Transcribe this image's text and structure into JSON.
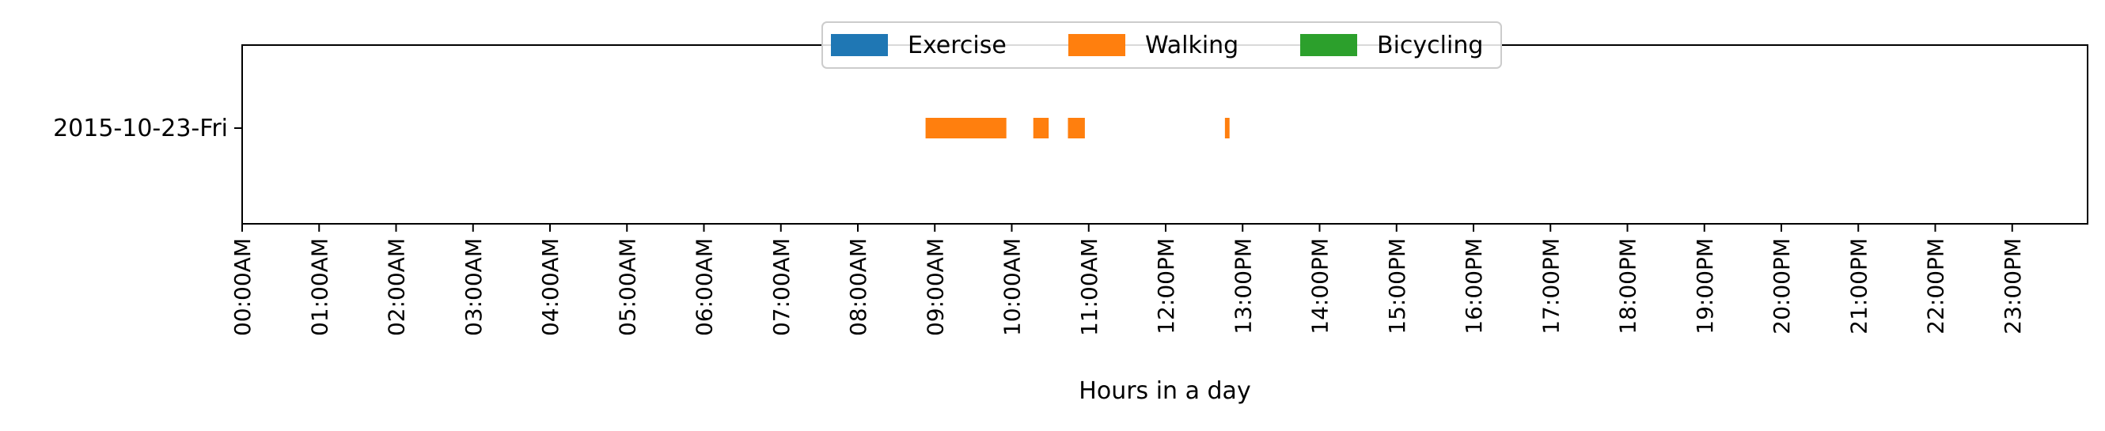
{
  "chart_data": {
    "type": "bar",
    "orientation": "horizontal-timeline",
    "title": "",
    "xlabel": "Hours in a day",
    "ylabel": "",
    "xlim": [
      0,
      24
    ],
    "x_tick_values": [
      0,
      1,
      2,
      3,
      4,
      5,
      6,
      7,
      8,
      9,
      10,
      11,
      12,
      13,
      14,
      15,
      16,
      17,
      18,
      19,
      20,
      21,
      22,
      23
    ],
    "x_tick_labels": [
      "00:00AM",
      "01:00AM",
      "02:00AM",
      "03:00AM",
      "04:00AM",
      "05:00AM",
      "06:00AM",
      "07:00AM",
      "08:00AM",
      "09:00AM",
      "10:00AM",
      "11:00AM",
      "12:00PM",
      "13:00PM",
      "14:00PM",
      "15:00PM",
      "16:00PM",
      "17:00PM",
      "18:00PM",
      "19:00PM",
      "20:00PM",
      "21:00PM",
      "22:00PM",
      "23:00PM"
    ],
    "categories": [
      "2015-10-23-Fri"
    ],
    "grid": false,
    "legend": {
      "position": "top-center"
    },
    "series": [
      {
        "name": "Exercise",
        "color": "#1f77b4",
        "intervals": []
      },
      {
        "name": "Walking",
        "color": "#ff7f0e",
        "intervals": [
          {
            "category": "2015-10-23-Fri",
            "start": 8.88,
            "end": 9.93
          },
          {
            "category": "2015-10-23-Fri",
            "start": 10.28,
            "end": 10.48
          },
          {
            "category": "2015-10-23-Fri",
            "start": 10.73,
            "end": 10.95
          },
          {
            "category": "2015-10-23-Fri",
            "start": 12.77,
            "end": 12.83
          }
        ]
      },
      {
        "name": "Bicycling",
        "color": "#2ca02c",
        "intervals": []
      }
    ]
  }
}
